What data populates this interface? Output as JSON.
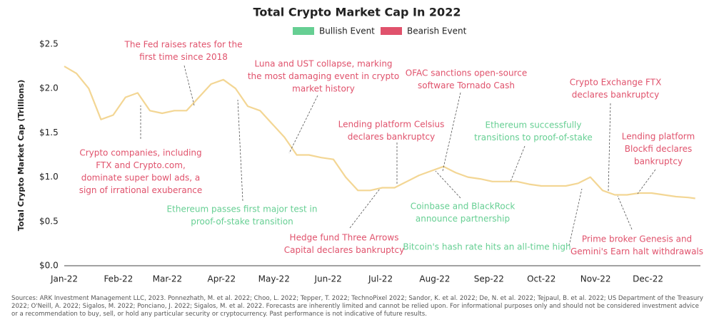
{
  "chart_data": {
    "type": "line",
    "title": "Total Crypto Market Cap In 2022",
    "y_label": "Total Crypto Market Cap (Trillions)",
    "legend": [
      {
        "name": "Bullish Event",
        "color": "#66cf93"
      },
      {
        "name": "Bearish Event",
        "color": "#e0526c"
      }
    ],
    "color": "#f3d694",
    "x": [
      0,
      7,
      14,
      21,
      28,
      35,
      42,
      49,
      56,
      63,
      70,
      77,
      84,
      91,
      98,
      105,
      112,
      119,
      126,
      133,
      140,
      147,
      154,
      161,
      168,
      175,
      182,
      189,
      196,
      203,
      210,
      217,
      224,
      231,
      238,
      245,
      252,
      259,
      266,
      273,
      280,
      287,
      294,
      301,
      308,
      315,
      322,
      329,
      336,
      343,
      350,
      357,
      361
    ],
    "values": [
      2.25,
      2.17,
      2.0,
      1.65,
      1.7,
      1.9,
      1.95,
      1.75,
      1.72,
      1.75,
      1.75,
      1.9,
      2.05,
      2.1,
      2.0,
      1.8,
      1.75,
      1.6,
      1.45,
      1.25,
      1.25,
      1.22,
      1.2,
      1.0,
      0.85,
      0.85,
      0.88,
      0.88,
      0.95,
      1.02,
      1.07,
      1.12,
      1.05,
      1.0,
      0.98,
      0.95,
      0.95,
      0.95,
      0.92,
      0.9,
      0.9,
      0.9,
      0.93,
      1.0,
      0.85,
      0.8,
      0.8,
      0.82,
      0.82,
      0.8,
      0.78,
      0.77,
      0.76
    ],
    "xlim": [
      0,
      364
    ],
    "xticks": [
      {
        "value": 0,
        "label": "Jan-22"
      },
      {
        "value": 31,
        "label": "Feb-22"
      },
      {
        "value": 59,
        "label": "Mar-22"
      },
      {
        "value": 90,
        "label": "Apr-22"
      },
      {
        "value": 120,
        "label": "May-22"
      },
      {
        "value": 151,
        "label": "Jun-22"
      },
      {
        "value": 181,
        "label": "Jul-22"
      },
      {
        "value": 212,
        "label": "Aug-22"
      },
      {
        "value": 243,
        "label": "Sep-22"
      },
      {
        "value": 273,
        "label": "Oct-22"
      },
      {
        "value": 304,
        "label": "Nov-22"
      },
      {
        "value": 334,
        "label": "Dec-22"
      }
    ],
    "ylim": [
      0,
      2.5
    ],
    "yticks": [
      {
        "value": 0,
        "label": "$0.0"
      },
      {
        "value": 0.5,
        "label": "$0.5"
      },
      {
        "value": 1,
        "label": "$1.0"
      },
      {
        "value": 1.5,
        "label": "$1.5"
      },
      {
        "value": 2,
        "label": "$2.0"
      },
      {
        "value": 2.5,
        "label": "$2.5"
      }
    ],
    "grid": false,
    "annotations": [
      {
        "lines": [
          "Crypto companies, including",
          "FTX and Crypto.com,",
          "dominate super bowl ads, a",
          "sign of irrational exuberance"
        ],
        "color": "#e0526c"
      },
      {
        "lines": [
          "The Fed raises rates for the",
          "first time since 2018"
        ],
        "color": "#e0526c"
      },
      {
        "lines": [
          "Luna and UST collapse, marking",
          "the most damaging event in crypto",
          "market history"
        ],
        "color": "#e0526c"
      },
      {
        "lines": [
          "OFAC sanctions open-source",
          "software Tornado Cash"
        ],
        "color": "#e0526c"
      },
      {
        "lines": [
          "Lending platform Celsius",
          "declares bankruptcy"
        ],
        "color": "#e0526c"
      },
      {
        "lines": [
          "Ethereum successfully",
          "transitions to proof-of-stake"
        ],
        "color": "#66cf93"
      },
      {
        "lines": [
          "Crypto Exchange FTX",
          "declares bankruptcy"
        ],
        "color": "#e0526c"
      },
      {
        "lines": [
          "Lending platform",
          "Blockfi declares",
          "bankruptcy"
        ],
        "color": "#e0526c"
      },
      {
        "lines": [
          "Ethereum passes first major test in",
          "proof-of-stake transition"
        ],
        "color": "#66cf93"
      },
      {
        "lines": [
          "Hedge fund Three Arrows",
          "Capital declares bankruptcy"
        ],
        "color": "#e0526c"
      },
      {
        "lines": [
          "Coinbase and BlackRock",
          "announce partnership"
        ],
        "color": "#66cf93"
      },
      {
        "lines": [
          "Bitcoin's hash rate hits an all-time high"
        ],
        "color": "#66cf93"
      },
      {
        "lines": [
          "Prime broker Genesis and",
          "Gemini's Earn halt withdrawals"
        ],
        "color": "#e0526c"
      }
    ],
    "source": "Sources: ARK Investment Management LLC, 2023. Ponnezhath, M. et al. 2022; Choo, L. 2022; Tepper, T. 2022; TechnoPixel 2022; Sandor, K. et al. 2022; De, N. et al. 2022; Tejpaul, B. et al. 2022; US Department of the Treasury 2022; O'Neill, A. 2022; Sigalos, M. 2022; Ponciano, J. 2022; Sigalos, M. et al. 2022. Forecasts are inherently limited and cannot be relied upon. For informational purposes only and should not be considered investment advice or a recommendation to buy, sell, or hold any particular security or cryptocurrency. Past performance is not indicative of future results."
  }
}
